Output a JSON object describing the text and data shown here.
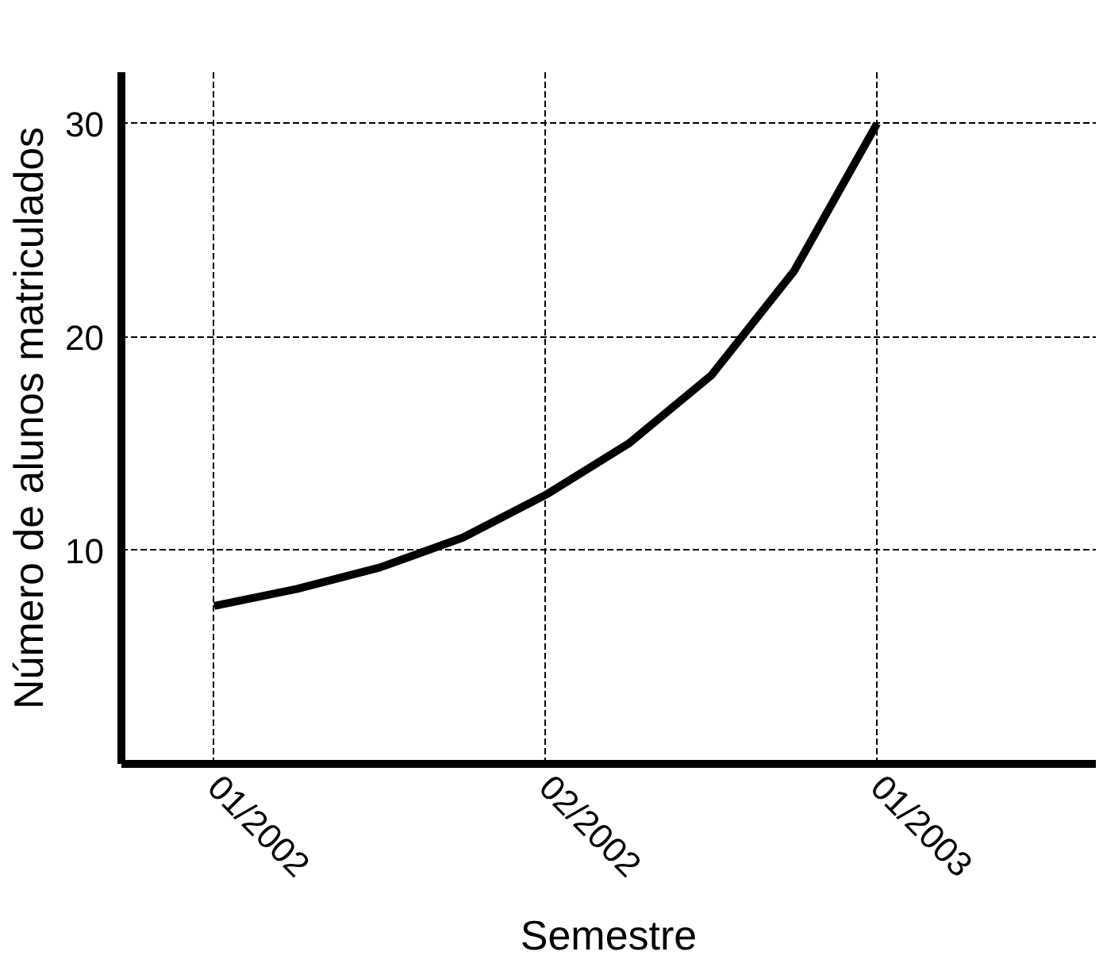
{
  "chart_data": {
    "type": "line",
    "xlabel": "Semestre",
    "ylabel": "Número de alunos matriculados",
    "categories": [
      "01/2002",
      null,
      null,
      null,
      "02/2002",
      null,
      null,
      null,
      "01/2003"
    ],
    "series": [
      {
        "color": "#000000",
        "values": [
          7.4,
          8.2,
          9.2,
          10.6,
          12.6,
          15.0,
          18.2,
          23.1,
          30
        ]
      }
    ],
    "ylim": [
      0,
      32.4
    ],
    "yticks": [
      10,
      20,
      30
    ],
    "grid": true,
    "line_style": "solid",
    "marker": "none"
  }
}
